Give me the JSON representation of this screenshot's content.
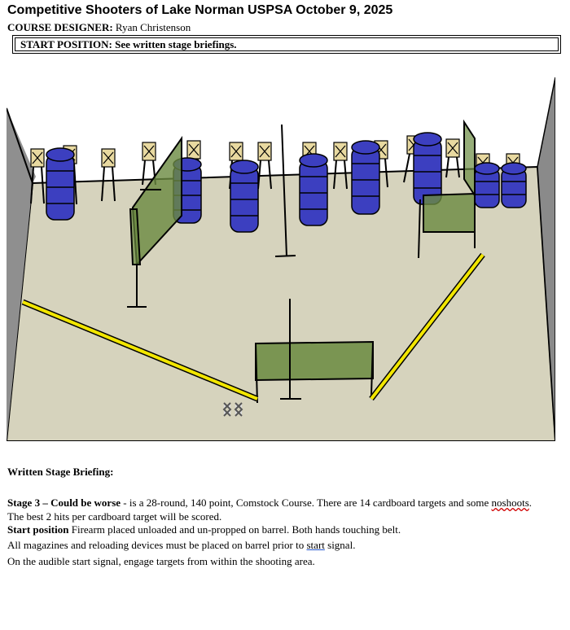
{
  "header": {
    "title": "Competitive Shooters of Lake Norman USPSA October 9, 2025",
    "designer_label": "COURSE DESIGNER:",
    "designer_name": "Ryan Christenson",
    "start_position": "START POSITION: See written stage briefings."
  },
  "diagram": {
    "colors": {
      "floor": "#d6d3bd",
      "wall": "#8a8a8a",
      "barrel": "#3c3fc0",
      "target": "#e8d9a0",
      "panel": "#6a8a40",
      "fault_line": "#f2e600"
    }
  },
  "briefing": {
    "heading": "Written Stage Briefing:",
    "stage_label": "Stage 3 – Could be worse",
    "stage_text_1": " - is a 28-round, 140 point, Comstock Course. There are 14 cardboard targets and some ",
    "stage_text_noshoots": "noshoots",
    "stage_text_2": ".",
    "line_2": "The best 2 hits per cardboard target will be scored.",
    "start_label": "Start position",
    "start_text": " Firearm placed unloaded and un-propped on barrel. Both hands touching belt.",
    "line_4a": "All magazines and reloading devices must be placed on barrel prior to ",
    "line_4_start": "start",
    "line_4b": " signal.",
    "line_5": "On the audible start signal, engage targets from within the shooting area."
  }
}
